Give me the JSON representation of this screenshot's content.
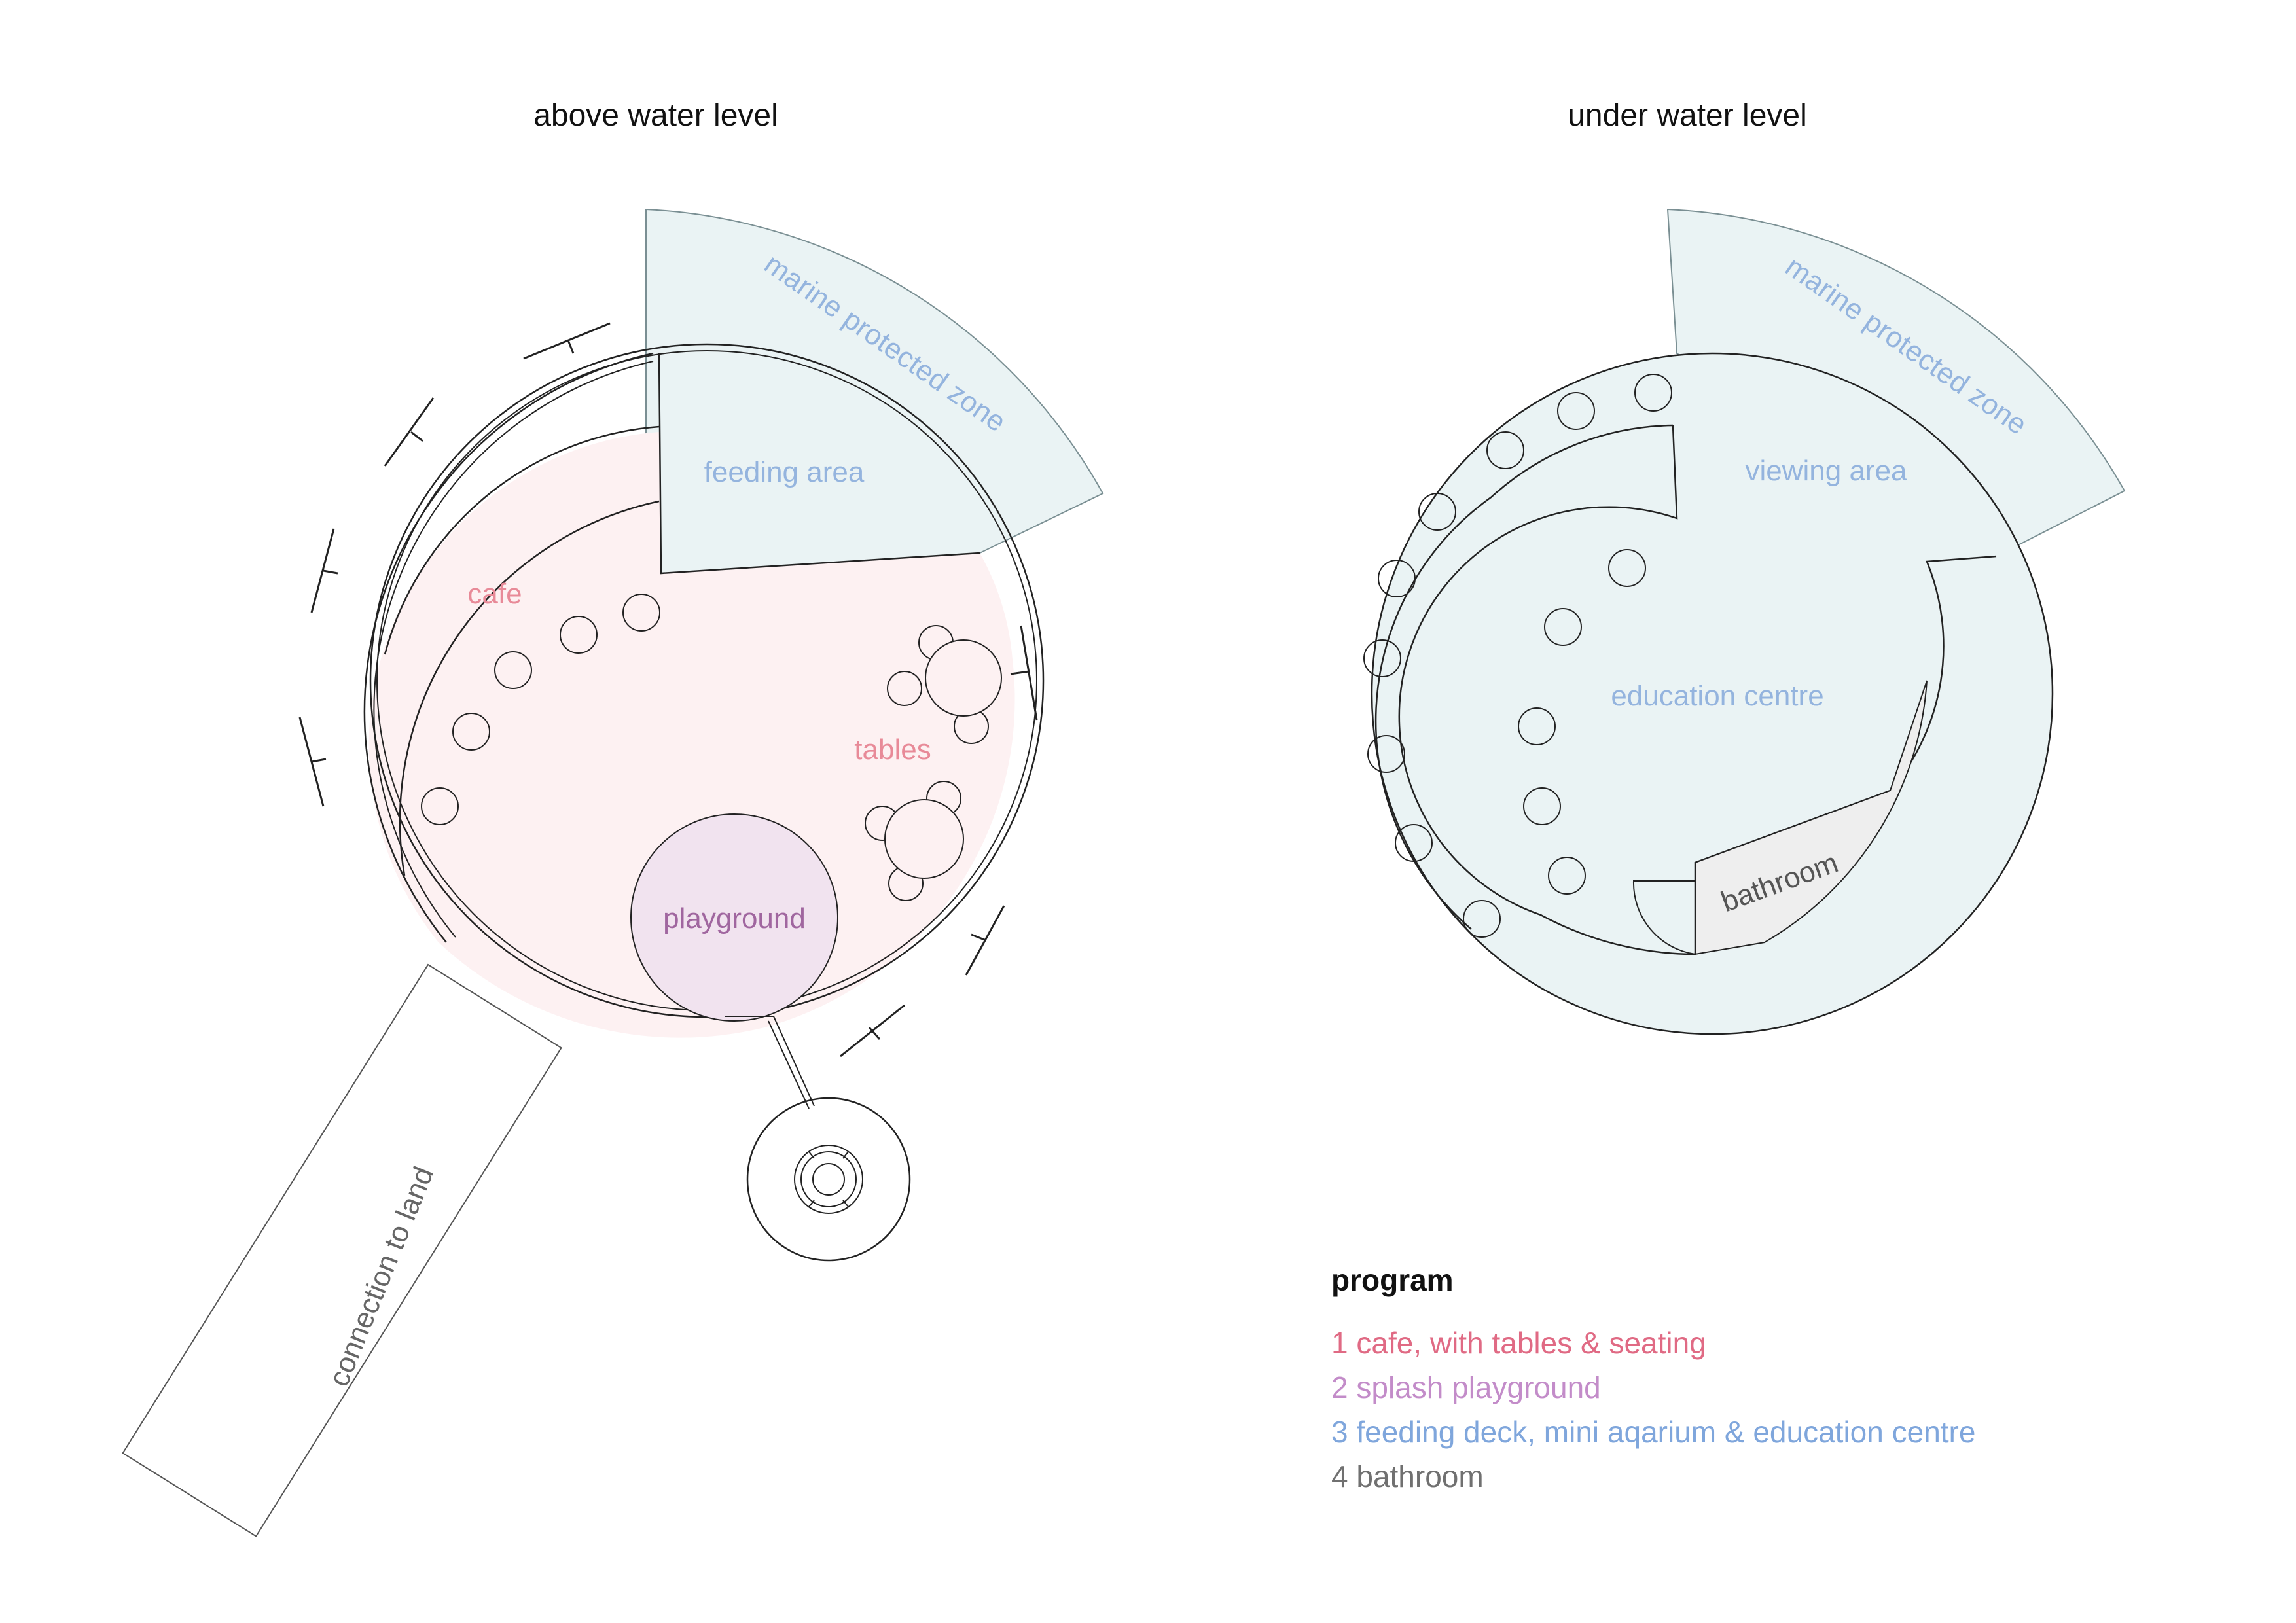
{
  "titles": {
    "above": "above water level",
    "under": "under water level"
  },
  "above_labels": {
    "marine_zone": "marine protected zone",
    "feeding_area": "feeding area",
    "cafe": "cafe",
    "tables": "tables",
    "playground": "playground",
    "connection": "connection to land"
  },
  "under_labels": {
    "marine_zone": "marine protected zone",
    "viewing_area": "viewing area",
    "education_centre": "education centre",
    "bathroom": "bathroom"
  },
  "legend": {
    "heading": "program",
    "items": [
      {
        "text": "1 cafe, with tables & seating",
        "color": "#e06a84"
      },
      {
        "text": "2  splash playground",
        "color": "#c38cc9"
      },
      {
        "text": "3  feeding deck, mini aqarium & education centre",
        "color": "#7fa6dc"
      },
      {
        "text": "4  bathroom",
        "color": "#707070"
      }
    ]
  },
  "colors": {
    "cafe_fill": "#fdf1f2",
    "cafe_text": "#e88a98",
    "marine_fill": "#eaf3f4",
    "marine_text": "#94b4de",
    "playground_fill": "#f1e3ef",
    "playground_text": "#a0669f",
    "bathroom_fill": "#eeeeee",
    "bathroom_text": "#555555",
    "line": "#222222"
  },
  "icons": {
    "pier_marker": "pier-post-icon",
    "jetty": "circular-jetty-icon"
  }
}
